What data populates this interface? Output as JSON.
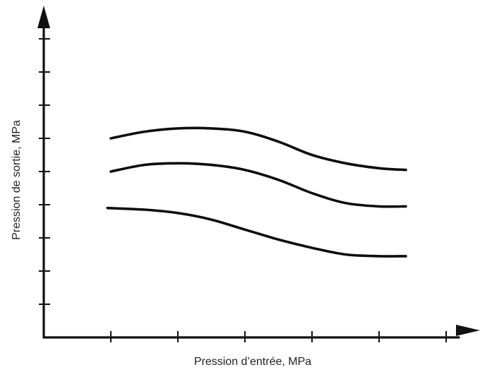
{
  "chart_data": {
    "type": "line",
    "title": "",
    "xlabel": "Pression d’entrée, MPa",
    "ylabel": "Pression de sortie, MPa",
    "x_ticks": [
      1,
      2,
      3,
      4,
      5,
      6
    ],
    "y_ticks": [
      1,
      2,
      3,
      4,
      5,
      6,
      7,
      8,
      9
    ],
    "xlim": [
      0,
      6.7
    ],
    "ylim": [
      0,
      10
    ],
    "grid": false,
    "tick_labels_shown": false,
    "series": [
      {
        "x": [
          1.0,
          1.5,
          2.0,
          2.5,
          3.0,
          3.5,
          4.0,
          4.5,
          5.0,
          5.4
        ],
        "y": [
          6.0,
          6.2,
          6.3,
          6.3,
          6.2,
          5.9,
          5.5,
          5.25,
          5.1,
          5.05
        ]
      },
      {
        "x": [
          1.0,
          1.5,
          2.0,
          2.5,
          3.0,
          3.5,
          4.0,
          4.5,
          5.0,
          5.4
        ],
        "y": [
          5.0,
          5.2,
          5.25,
          5.2,
          5.05,
          4.75,
          4.35,
          4.05,
          3.95,
          3.95
        ]
      },
      {
        "x": [
          0.95,
          1.5,
          2.0,
          2.5,
          3.0,
          3.5,
          4.0,
          4.5,
          5.0,
          5.4
        ],
        "y": [
          3.9,
          3.85,
          3.75,
          3.55,
          3.25,
          2.95,
          2.7,
          2.5,
          2.45,
          2.45
        ]
      }
    ]
  }
}
